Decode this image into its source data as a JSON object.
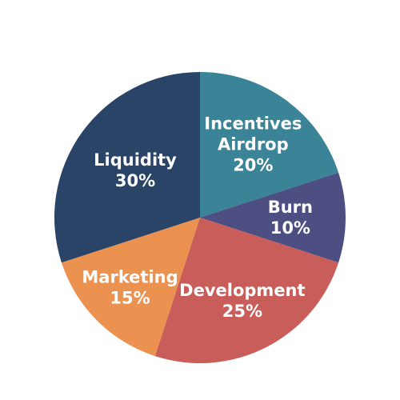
{
  "chart_data": {
    "type": "pie",
    "title": "",
    "slices": [
      {
        "key": "incentives",
        "label_lines": [
          "Incentives",
          "Airdrop"
        ],
        "value": 20,
        "display": "20%",
        "color": "#3b8497"
      },
      {
        "key": "burn",
        "label_lines": [
          "Burn"
        ],
        "value": 10,
        "display": "10%",
        "color": "#4d4e82"
      },
      {
        "key": "development",
        "label_lines": [
          "Development"
        ],
        "value": 25,
        "display": "25%",
        "color": "#c95d5a"
      },
      {
        "key": "marketing",
        "label_lines": [
          "Marketing"
        ],
        "value": 15,
        "display": "15%",
        "color": "#ec9250"
      },
      {
        "key": "liquidity",
        "label_lines": [
          "Liquidity"
        ],
        "value": 30,
        "display": "30%",
        "color": "#2a4468"
      }
    ],
    "start_angle_deg": 0,
    "direction": "clockwise",
    "legend": "none"
  }
}
